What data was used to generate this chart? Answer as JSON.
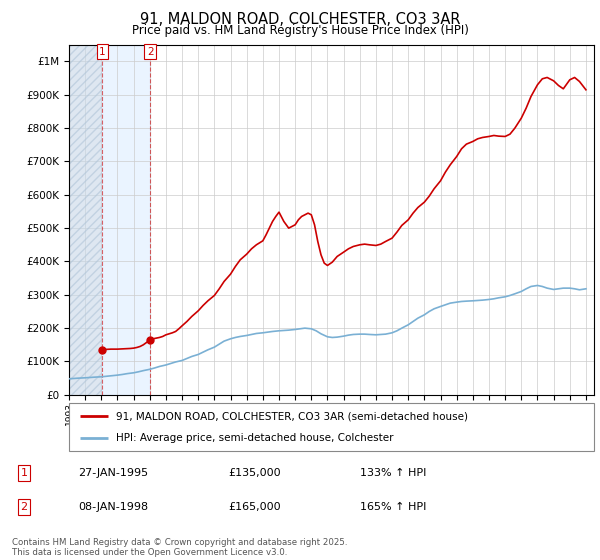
{
  "title": "91, MALDON ROAD, COLCHESTER, CO3 3AR",
  "subtitle": "Price paid vs. HM Land Registry's House Price Index (HPI)",
  "legend_label_red": "91, MALDON ROAD, COLCHESTER, CO3 3AR (semi-detached house)",
  "legend_label_blue": "HPI: Average price, semi-detached house, Colchester",
  "annotation1_date": "27-JAN-1995",
  "annotation1_price": "£135,000",
  "annotation1_hpi": "133% ↑ HPI",
  "annotation2_date": "08-JAN-1998",
  "annotation2_price": "£165,000",
  "annotation2_hpi": "165% ↑ HPI",
  "copyright": "Contains HM Land Registry data © Crown copyright and database right 2025.\nThis data is licensed under the Open Government Licence v3.0.",
  "red_color": "#cc0000",
  "blue_color": "#7ab0d4",
  "shading_hatch_color": "#c8d8e8",
  "shading_plain_color": "#ddeeff",
  "ylim": [
    0,
    1050000
  ],
  "yticks": [
    0,
    100000,
    200000,
    300000,
    400000,
    500000,
    600000,
    700000,
    800000,
    900000,
    1000000
  ],
  "xlim_start": 1993.0,
  "xlim_end": 2025.5,
  "sale1_x": 1995.07,
  "sale1_y": 135000,
  "sale2_x": 1998.03,
  "sale2_y": 165000,
  "red_x": [
    1995.07,
    1995.2,
    1995.4,
    1995.6,
    1995.8,
    1996.0,
    1996.2,
    1996.4,
    1996.6,
    1996.8,
    1997.0,
    1997.2,
    1997.4,
    1997.6,
    1997.8,
    1998.03,
    1998.2,
    1998.4,
    1998.6,
    1998.8,
    1999.0,
    1999.2,
    1999.4,
    1999.6,
    1999.8,
    2000.0,
    2000.3,
    2000.6,
    2001.0,
    2001.3,
    2001.6,
    2002.0,
    2002.3,
    2002.6,
    2003.0,
    2003.3,
    2003.6,
    2004.0,
    2004.3,
    2004.6,
    2005.0,
    2005.2,
    2005.4,
    2005.6,
    2005.8,
    2006.0,
    2006.3,
    2006.6,
    2007.0,
    2007.2,
    2007.4,
    2007.6,
    2007.8,
    2008.0,
    2008.2,
    2008.4,
    2008.6,
    2008.8,
    2009.0,
    2009.3,
    2009.6,
    2010.0,
    2010.3,
    2010.6,
    2011.0,
    2011.3,
    2011.6,
    2012.0,
    2012.3,
    2012.6,
    2013.0,
    2013.3,
    2013.6,
    2014.0,
    2014.3,
    2014.6,
    2015.0,
    2015.3,
    2015.6,
    2016.0,
    2016.3,
    2016.6,
    2017.0,
    2017.3,
    2017.6,
    2018.0,
    2018.3,
    2018.6,
    2019.0,
    2019.3,
    2019.6,
    2020.0,
    2020.3,
    2020.6,
    2021.0,
    2021.3,
    2021.6,
    2022.0,
    2022.3,
    2022.6,
    2023.0,
    2023.3,
    2023.6,
    2024.0,
    2024.3,
    2024.6,
    2025.0
  ],
  "red_y": [
    135000,
    136000,
    136500,
    137000,
    137000,
    137000,
    137500,
    138000,
    138500,
    139000,
    140000,
    142000,
    145000,
    150000,
    157000,
    165000,
    168000,
    170000,
    172000,
    175000,
    180000,
    183000,
    186000,
    190000,
    198000,
    207000,
    220000,
    235000,
    252000,
    268000,
    282000,
    298000,
    318000,
    340000,
    362000,
    385000,
    405000,
    422000,
    438000,
    450000,
    462000,
    480000,
    500000,
    520000,
    535000,
    548000,
    520000,
    500000,
    510000,
    525000,
    535000,
    540000,
    545000,
    540000,
    510000,
    460000,
    420000,
    395000,
    388000,
    398000,
    415000,
    428000,
    438000,
    445000,
    450000,
    452000,
    450000,
    448000,
    452000,
    460000,
    470000,
    488000,
    508000,
    525000,
    545000,
    562000,
    578000,
    596000,
    618000,
    642000,
    668000,
    690000,
    715000,
    738000,
    752000,
    760000,
    768000,
    772000,
    775000,
    778000,
    776000,
    775000,
    782000,
    800000,
    830000,
    860000,
    895000,
    930000,
    948000,
    952000,
    942000,
    928000,
    918000,
    945000,
    952000,
    940000,
    915000
  ],
  "blue_x": [
    1993.0,
    1993.3,
    1993.6,
    1994.0,
    1994.3,
    1994.6,
    1995.0,
    1995.3,
    1995.6,
    1996.0,
    1996.3,
    1996.6,
    1997.0,
    1997.3,
    1997.6,
    1998.0,
    1998.3,
    1998.6,
    1999.0,
    1999.3,
    1999.6,
    2000.0,
    2000.3,
    2000.6,
    2001.0,
    2001.3,
    2001.6,
    2002.0,
    2002.3,
    2002.6,
    2003.0,
    2003.3,
    2003.6,
    2004.0,
    2004.3,
    2004.6,
    2005.0,
    2005.3,
    2005.6,
    2006.0,
    2006.3,
    2006.6,
    2007.0,
    2007.3,
    2007.6,
    2008.0,
    2008.3,
    2008.6,
    2009.0,
    2009.3,
    2009.6,
    2010.0,
    2010.3,
    2010.6,
    2011.0,
    2011.3,
    2011.6,
    2012.0,
    2012.3,
    2012.6,
    2013.0,
    2013.3,
    2013.6,
    2014.0,
    2014.3,
    2014.6,
    2015.0,
    2015.3,
    2015.6,
    2016.0,
    2016.3,
    2016.6,
    2017.0,
    2017.3,
    2017.6,
    2018.0,
    2018.3,
    2018.6,
    2019.0,
    2019.3,
    2019.6,
    2020.0,
    2020.3,
    2020.6,
    2021.0,
    2021.3,
    2021.6,
    2022.0,
    2022.3,
    2022.6,
    2023.0,
    2023.3,
    2023.6,
    2024.0,
    2024.3,
    2024.6,
    2025.0
  ],
  "blue_y": [
    48000,
    49000,
    50000,
    51000,
    52000,
    53000,
    54000,
    55500,
    57000,
    59000,
    61000,
    63500,
    66000,
    69000,
    72500,
    76500,
    80500,
    85000,
    89500,
    94000,
    98500,
    103000,
    109000,
    115000,
    121000,
    128000,
    135000,
    143000,
    152000,
    161000,
    168000,
    172000,
    175000,
    178000,
    181000,
    184000,
    186000,
    188000,
    190000,
    192000,
    193000,
    194000,
    196000,
    198000,
    200000,
    198000,
    192000,
    183000,
    174000,
    172000,
    173000,
    176000,
    179000,
    181000,
    182000,
    182000,
    181000,
    180000,
    181000,
    182000,
    186000,
    192000,
    200000,
    210000,
    220000,
    230000,
    240000,
    250000,
    258000,
    265000,
    270000,
    275000,
    278000,
    280000,
    281000,
    282000,
    283000,
    284000,
    286000,
    288000,
    291000,
    294000,
    298000,
    303000,
    310000,
    318000,
    325000,
    328000,
    325000,
    320000,
    316000,
    318000,
    320000,
    320000,
    318000,
    315000,
    318000
  ]
}
